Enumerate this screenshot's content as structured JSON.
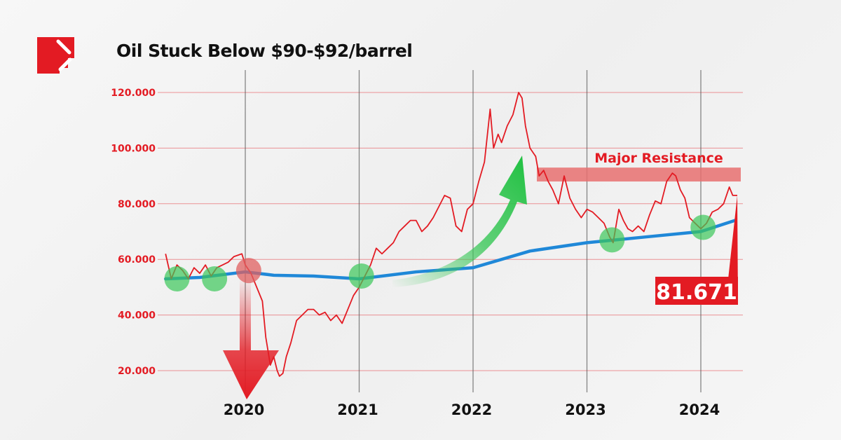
{
  "header": {
    "title": "Oil Stuck Below $90-$92/barrel",
    "logo": "brand-logo-icon"
  },
  "colors": {
    "accent": "#e31b23",
    "ma": "#1f88d8",
    "support": "#3cc85a",
    "resistance": "#e87070"
  },
  "chart_data": {
    "type": "line",
    "title": "Oil Stuck Below $90-$92/barrel",
    "xlabel": "",
    "ylabel": "",
    "ylim": [
      20,
      120
    ],
    "xlim": [
      2019.3,
      2024.32
    ],
    "y_ticks": [
      "20.000",
      "40.000",
      "60.000",
      "80.000",
      "100.000",
      "120.000"
    ],
    "x_ticks": [
      "2020",
      "2021",
      "2022",
      "2023",
      "2024"
    ],
    "grid": true,
    "series": [
      {
        "role": "price",
        "color": "#e31b23",
        "points": [
          [
            2019.3,
            62
          ],
          [
            2019.35,
            53
          ],
          [
            2019.4,
            58
          ],
          [
            2019.45,
            56
          ],
          [
            2019.5,
            53
          ],
          [
            2019.55,
            57
          ],
          [
            2019.6,
            55
          ],
          [
            2019.65,
            58
          ],
          [
            2019.7,
            54
          ],
          [
            2019.75,
            57
          ],
          [
            2019.8,
            58
          ],
          [
            2019.85,
            59
          ],
          [
            2019.9,
            61
          ],
          [
            2019.97,
            62
          ],
          [
            2020.0,
            58
          ],
          [
            2020.05,
            55
          ],
          [
            2020.1,
            50
          ],
          [
            2020.15,
            45
          ],
          [
            2020.18,
            32
          ],
          [
            2020.22,
            22
          ],
          [
            2020.25,
            25
          ],
          [
            2020.28,
            20
          ],
          [
            2020.3,
            18
          ],
          [
            2020.33,
            19
          ],
          [
            2020.36,
            25
          ],
          [
            2020.4,
            30
          ],
          [
            2020.45,
            38
          ],
          [
            2020.5,
            40
          ],
          [
            2020.55,
            42
          ],
          [
            2020.6,
            42
          ],
          [
            2020.65,
            40
          ],
          [
            2020.7,
            41
          ],
          [
            2020.75,
            38
          ],
          [
            2020.8,
            40
          ],
          [
            2020.85,
            37
          ],
          [
            2020.9,
            42
          ],
          [
            2020.95,
            47
          ],
          [
            2021.0,
            50
          ],
          [
            2021.05,
            54
          ],
          [
            2021.1,
            58
          ],
          [
            2021.15,
            64
          ],
          [
            2021.2,
            62
          ],
          [
            2021.25,
            64
          ],
          [
            2021.3,
            66
          ],
          [
            2021.35,
            70
          ],
          [
            2021.4,
            72
          ],
          [
            2021.45,
            74
          ],
          [
            2021.5,
            74
          ],
          [
            2021.55,
            70
          ],
          [
            2021.6,
            72
          ],
          [
            2021.65,
            75
          ],
          [
            2021.7,
            79
          ],
          [
            2021.75,
            83
          ],
          [
            2021.8,
            82
          ],
          [
            2021.85,
            72
          ],
          [
            2021.9,
            70
          ],
          [
            2021.95,
            78
          ],
          [
            2022.0,
            80
          ],
          [
            2022.05,
            88
          ],
          [
            2022.1,
            95
          ],
          [
            2022.15,
            114
          ],
          [
            2022.18,
            100
          ],
          [
            2022.22,
            105
          ],
          [
            2022.25,
            102
          ],
          [
            2022.3,
            108
          ],
          [
            2022.35,
            112
          ],
          [
            2022.4,
            120
          ],
          [
            2022.43,
            118
          ],
          [
            2022.46,
            108
          ],
          [
            2022.5,
            100
          ],
          [
            2022.55,
            97
          ],
          [
            2022.58,
            90
          ],
          [
            2022.62,
            92
          ],
          [
            2022.66,
            88
          ],
          [
            2022.7,
            85
          ],
          [
            2022.75,
            80
          ],
          [
            2022.8,
            90
          ],
          [
            2022.85,
            82
          ],
          [
            2022.9,
            78
          ],
          [
            2022.95,
            75
          ],
          [
            2023.0,
            78
          ],
          [
            2023.05,
            77
          ],
          [
            2023.1,
            75
          ],
          [
            2023.15,
            73
          ],
          [
            2023.2,
            68
          ],
          [
            2023.23,
            66
          ],
          [
            2023.28,
            78
          ],
          [
            2023.32,
            74
          ],
          [
            2023.36,
            71
          ],
          [
            2023.4,
            70
          ],
          [
            2023.45,
            72
          ],
          [
            2023.5,
            70
          ],
          [
            2023.55,
            76
          ],
          [
            2023.6,
            81
          ],
          [
            2023.65,
            80
          ],
          [
            2023.7,
            88
          ],
          [
            2023.75,
            91
          ],
          [
            2023.78,
            90
          ],
          [
            2023.82,
            85
          ],
          [
            2023.86,
            82
          ],
          [
            2023.9,
            75
          ],
          [
            2023.95,
            73
          ],
          [
            2024.0,
            71
          ],
          [
            2024.05,
            73
          ],
          [
            2024.1,
            77
          ],
          [
            2024.15,
            78
          ],
          [
            2024.2,
            80
          ],
          [
            2024.25,
            86
          ],
          [
            2024.28,
            83
          ],
          [
            2024.32,
            83
          ]
        ]
      },
      {
        "role": "moving-average",
        "color": "#1f88d8",
        "points": [
          [
            2019.3,
            53
          ],
          [
            2019.6,
            53.5
          ],
          [
            2020.0,
            55.5
          ],
          [
            2020.25,
            54.3
          ],
          [
            2020.6,
            54
          ],
          [
            2021.0,
            53
          ],
          [
            2021.5,
            55.5
          ],
          [
            2022.0,
            57
          ],
          [
            2022.5,
            63
          ],
          [
            2023.0,
            66
          ],
          [
            2023.5,
            68
          ],
          [
            2024.0,
            70
          ],
          [
            2024.3,
            74
          ]
        ]
      }
    ],
    "support_touches": [
      [
        2019.4,
        53
      ],
      [
        2019.73,
        53
      ],
      [
        2021.02,
        54
      ],
      [
        2023.22,
        67
      ],
      [
        2024.02,
        71.5
      ]
    ],
    "breakdown_point": [
      2020.03,
      56
    ],
    "resistance_band": {
      "label": "Major Resistance",
      "range": [
        88,
        93
      ],
      "from": 2022.56,
      "to": 2024.32
    },
    "last_price": {
      "label": "81.671",
      "value": 81.671
    }
  }
}
